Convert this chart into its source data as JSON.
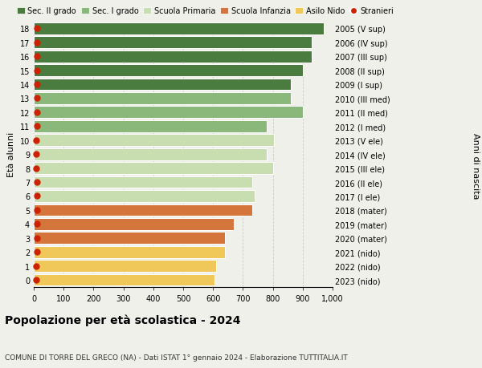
{
  "ages": [
    18,
    17,
    16,
    15,
    14,
    13,
    12,
    11,
    10,
    9,
    8,
    7,
    6,
    5,
    4,
    3,
    2,
    1,
    0
  ],
  "right_labels": [
    "2005 (V sup)",
    "2006 (IV sup)",
    "2007 (III sup)",
    "2008 (II sup)",
    "2009 (I sup)",
    "2010 (III med)",
    "2011 (II med)",
    "2012 (I med)",
    "2013 (V ele)",
    "2014 (IV ele)",
    "2015 (III ele)",
    "2016 (II ele)",
    "2017 (I ele)",
    "2018 (mater)",
    "2019 (mater)",
    "2020 (mater)",
    "2021 (nido)",
    "2022 (nido)",
    "2023 (nido)"
  ],
  "values": [
    970,
    930,
    930,
    900,
    860,
    860,
    900,
    780,
    805,
    780,
    800,
    730,
    740,
    730,
    670,
    640,
    640,
    610,
    605
  ],
  "stranieri": [
    12,
    10,
    10,
    10,
    10,
    12,
    10,
    12,
    8,
    8,
    8,
    10,
    10,
    10,
    10,
    10,
    10,
    8,
    8
  ],
  "bar_colors": [
    "#4a7c3f",
    "#4a7c3f",
    "#4a7c3f",
    "#4a7c3f",
    "#4a7c3f",
    "#8ab87a",
    "#8ab87a",
    "#8ab87a",
    "#c8ddb0",
    "#c8ddb0",
    "#c8ddb0",
    "#c8ddb0",
    "#c8ddb0",
    "#d4763b",
    "#d4763b",
    "#d4763b",
    "#f0c85a",
    "#f0c85a",
    "#f0c85a"
  ],
  "legend_labels": [
    "Sec. II grado",
    "Sec. I grado",
    "Scuola Primaria",
    "Scuola Infanzia",
    "Asilo Nido",
    "Stranieri"
  ],
  "legend_colors": [
    "#4a7c3f",
    "#8ab87a",
    "#c8ddb0",
    "#d4763b",
    "#f0c85a",
    "#cc2200"
  ],
  "ylabel_left": "Età alunni",
  "ylabel_right": "Anni di nascita",
  "title": "Popolazione per età scolastica - 2024",
  "subtitle": "COMUNE DI TORRE DEL GRECO (NA) - Dati ISTAT 1° gennaio 2024 - Elaborazione TUTTITALIA.IT",
  "xlim": [
    0,
    1000
  ],
  "xticks": [
    0,
    100,
    200,
    300,
    400,
    500,
    600,
    700,
    800,
    900,
    1000
  ],
  "xticklabels": [
    "0",
    "100",
    "200",
    "300",
    "400",
    "500",
    "600",
    "700",
    "800",
    "900",
    "1,000"
  ],
  "background_color": "#f0f0eb",
  "bar_edge_color": "white",
  "dot_color": "#cc2200",
  "dot_size": 25
}
